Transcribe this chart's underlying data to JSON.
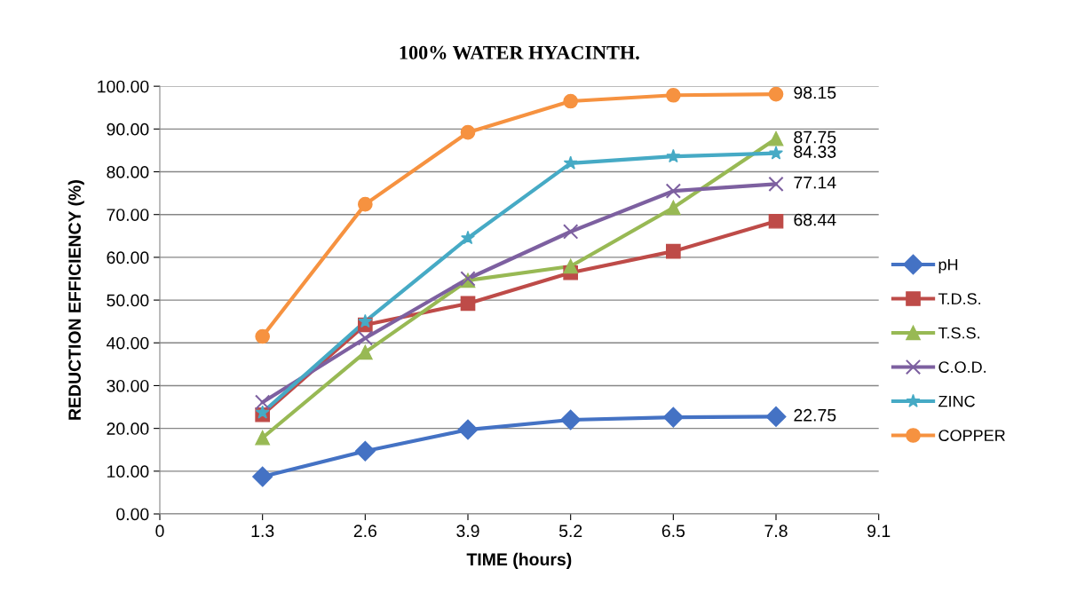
{
  "chart_data": {
    "type": "line",
    "title": "100% WATER HYACINTH.",
    "xlabel": "TIME (hours)",
    "ylabel": "REDUCTION EFFICIENCY (%)",
    "x": [
      1.3,
      2.6,
      3.9,
      5.2,
      6.5,
      7.8
    ],
    "xlim": [
      0,
      9.1
    ],
    "xticks": [
      {
        "value": 0,
        "label": "0"
      },
      1.3,
      2.6,
      3.9,
      5.2,
      6.5,
      7.8,
      9.1
    ],
    "ylim": [
      0,
      100
    ],
    "yticks": [
      {
        "value": 0,
        "label": "0.00"
      },
      {
        "value": 10,
        "label": "10.00"
      },
      {
        "value": 20,
        "label": "20.00"
      },
      {
        "value": 30,
        "label": "30.00"
      },
      {
        "value": 40,
        "label": "40.00"
      },
      {
        "value": 50,
        "label": "50.00"
      },
      {
        "value": 60,
        "label": "60.00"
      },
      {
        "value": 70,
        "label": "70.00"
      },
      {
        "value": 80,
        "label": "80.00"
      },
      {
        "value": 90,
        "label": "90.00"
      },
      {
        "value": 100,
        "label": "100.00"
      }
    ],
    "grid": "y",
    "legend": "right",
    "series": [
      {
        "name": "pH",
        "color": "#4472c4",
        "marker": "diamond",
        "values": [
          8.7,
          14.7,
          19.7,
          22.0,
          22.6,
          22.75
        ],
        "value_labels": [
          null,
          null,
          null,
          null,
          null,
          "22.75"
        ]
      },
      {
        "name": "T.D.S.",
        "color": "#be4b48",
        "marker": "square",
        "values": [
          23.2,
          44.2,
          49.2,
          56.4,
          61.4,
          68.44
        ],
        "value_labels": [
          null,
          null,
          null,
          null,
          null,
          "68.44"
        ]
      },
      {
        "name": "T.S.S.",
        "color": "#98b954",
        "marker": "triangle",
        "values": [
          17.8,
          37.8,
          54.6,
          57.9,
          71.6,
          87.75
        ],
        "value_labels": [
          null,
          null,
          null,
          null,
          null,
          "87.75"
        ]
      },
      {
        "name": "C.O.D.",
        "color": "#7d60a0",
        "marker": "cross",
        "values": [
          26.1,
          41.1,
          55.0,
          66.0,
          75.5,
          77.14
        ],
        "value_labels": [
          null,
          null,
          null,
          null,
          null,
          "77.14"
        ]
      },
      {
        "name": "ZINC",
        "color": "#46aac5",
        "marker": "star",
        "values": [
          23.7,
          45.0,
          64.5,
          82.0,
          83.6,
          84.33
        ],
        "value_labels": [
          null,
          null,
          null,
          null,
          null,
          "84.33"
        ]
      },
      {
        "name": "COPPER",
        "color": "#f69240",
        "marker": "circle",
        "values": [
          41.5,
          72.4,
          89.2,
          96.5,
          97.9,
          98.15
        ],
        "value_labels": [
          null,
          null,
          null,
          null,
          null,
          "98.15"
        ]
      }
    ]
  }
}
